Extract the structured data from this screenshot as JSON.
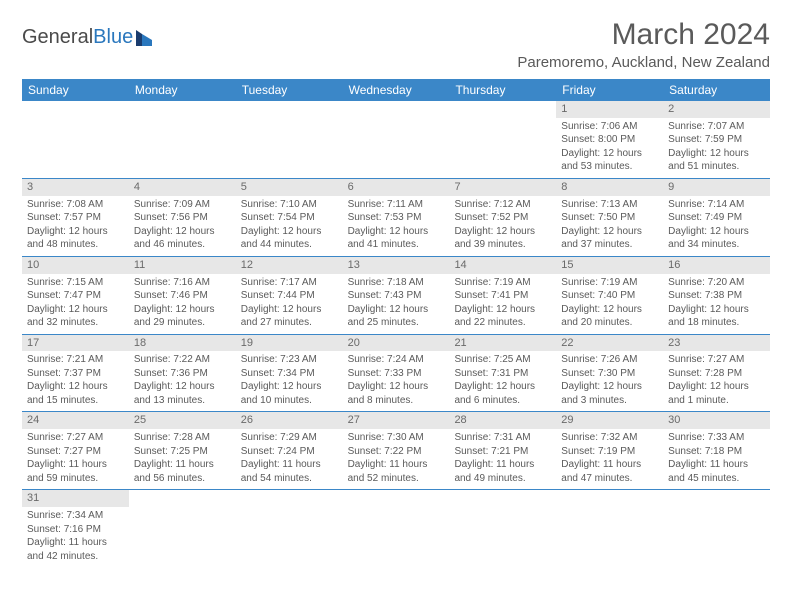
{
  "logo": {
    "text1": "General",
    "text2": "Blue"
  },
  "title": "March 2024",
  "location": "Paremoremo, Auckland, New Zealand",
  "colors": {
    "header_bg": "#3b87c8",
    "header_text": "#ffffff",
    "daynum_bg": "#e7e7e7",
    "text": "#5a5a5a",
    "rule": "#3b87c8"
  },
  "weekdays": [
    "Sunday",
    "Monday",
    "Tuesday",
    "Wednesday",
    "Thursday",
    "Friday",
    "Saturday"
  ],
  "weeks": [
    [
      {
        "n": "",
        "sr": "",
        "ss": "",
        "dl": ""
      },
      {
        "n": "",
        "sr": "",
        "ss": "",
        "dl": ""
      },
      {
        "n": "",
        "sr": "",
        "ss": "",
        "dl": ""
      },
      {
        "n": "",
        "sr": "",
        "ss": "",
        "dl": ""
      },
      {
        "n": "",
        "sr": "",
        "ss": "",
        "dl": ""
      },
      {
        "n": "1",
        "sr": "Sunrise: 7:06 AM",
        "ss": "Sunset: 8:00 PM",
        "dl": "Daylight: 12 hours and 53 minutes."
      },
      {
        "n": "2",
        "sr": "Sunrise: 7:07 AM",
        "ss": "Sunset: 7:59 PM",
        "dl": "Daylight: 12 hours and 51 minutes."
      }
    ],
    [
      {
        "n": "3",
        "sr": "Sunrise: 7:08 AM",
        "ss": "Sunset: 7:57 PM",
        "dl": "Daylight: 12 hours and 48 minutes."
      },
      {
        "n": "4",
        "sr": "Sunrise: 7:09 AM",
        "ss": "Sunset: 7:56 PM",
        "dl": "Daylight: 12 hours and 46 minutes."
      },
      {
        "n": "5",
        "sr": "Sunrise: 7:10 AM",
        "ss": "Sunset: 7:54 PM",
        "dl": "Daylight: 12 hours and 44 minutes."
      },
      {
        "n": "6",
        "sr": "Sunrise: 7:11 AM",
        "ss": "Sunset: 7:53 PM",
        "dl": "Daylight: 12 hours and 41 minutes."
      },
      {
        "n": "7",
        "sr": "Sunrise: 7:12 AM",
        "ss": "Sunset: 7:52 PM",
        "dl": "Daylight: 12 hours and 39 minutes."
      },
      {
        "n": "8",
        "sr": "Sunrise: 7:13 AM",
        "ss": "Sunset: 7:50 PM",
        "dl": "Daylight: 12 hours and 37 minutes."
      },
      {
        "n": "9",
        "sr": "Sunrise: 7:14 AM",
        "ss": "Sunset: 7:49 PM",
        "dl": "Daylight: 12 hours and 34 minutes."
      }
    ],
    [
      {
        "n": "10",
        "sr": "Sunrise: 7:15 AM",
        "ss": "Sunset: 7:47 PM",
        "dl": "Daylight: 12 hours and 32 minutes."
      },
      {
        "n": "11",
        "sr": "Sunrise: 7:16 AM",
        "ss": "Sunset: 7:46 PM",
        "dl": "Daylight: 12 hours and 29 minutes."
      },
      {
        "n": "12",
        "sr": "Sunrise: 7:17 AM",
        "ss": "Sunset: 7:44 PM",
        "dl": "Daylight: 12 hours and 27 minutes."
      },
      {
        "n": "13",
        "sr": "Sunrise: 7:18 AM",
        "ss": "Sunset: 7:43 PM",
        "dl": "Daylight: 12 hours and 25 minutes."
      },
      {
        "n": "14",
        "sr": "Sunrise: 7:19 AM",
        "ss": "Sunset: 7:41 PM",
        "dl": "Daylight: 12 hours and 22 minutes."
      },
      {
        "n": "15",
        "sr": "Sunrise: 7:19 AM",
        "ss": "Sunset: 7:40 PM",
        "dl": "Daylight: 12 hours and 20 minutes."
      },
      {
        "n": "16",
        "sr": "Sunrise: 7:20 AM",
        "ss": "Sunset: 7:38 PM",
        "dl": "Daylight: 12 hours and 18 minutes."
      }
    ],
    [
      {
        "n": "17",
        "sr": "Sunrise: 7:21 AM",
        "ss": "Sunset: 7:37 PM",
        "dl": "Daylight: 12 hours and 15 minutes."
      },
      {
        "n": "18",
        "sr": "Sunrise: 7:22 AM",
        "ss": "Sunset: 7:36 PM",
        "dl": "Daylight: 12 hours and 13 minutes."
      },
      {
        "n": "19",
        "sr": "Sunrise: 7:23 AM",
        "ss": "Sunset: 7:34 PM",
        "dl": "Daylight: 12 hours and 10 minutes."
      },
      {
        "n": "20",
        "sr": "Sunrise: 7:24 AM",
        "ss": "Sunset: 7:33 PM",
        "dl": "Daylight: 12 hours and 8 minutes."
      },
      {
        "n": "21",
        "sr": "Sunrise: 7:25 AM",
        "ss": "Sunset: 7:31 PM",
        "dl": "Daylight: 12 hours and 6 minutes."
      },
      {
        "n": "22",
        "sr": "Sunrise: 7:26 AM",
        "ss": "Sunset: 7:30 PM",
        "dl": "Daylight: 12 hours and 3 minutes."
      },
      {
        "n": "23",
        "sr": "Sunrise: 7:27 AM",
        "ss": "Sunset: 7:28 PM",
        "dl": "Daylight: 12 hours and 1 minute."
      }
    ],
    [
      {
        "n": "24",
        "sr": "Sunrise: 7:27 AM",
        "ss": "Sunset: 7:27 PM",
        "dl": "Daylight: 11 hours and 59 minutes."
      },
      {
        "n": "25",
        "sr": "Sunrise: 7:28 AM",
        "ss": "Sunset: 7:25 PM",
        "dl": "Daylight: 11 hours and 56 minutes."
      },
      {
        "n": "26",
        "sr": "Sunrise: 7:29 AM",
        "ss": "Sunset: 7:24 PM",
        "dl": "Daylight: 11 hours and 54 minutes."
      },
      {
        "n": "27",
        "sr": "Sunrise: 7:30 AM",
        "ss": "Sunset: 7:22 PM",
        "dl": "Daylight: 11 hours and 52 minutes."
      },
      {
        "n": "28",
        "sr": "Sunrise: 7:31 AM",
        "ss": "Sunset: 7:21 PM",
        "dl": "Daylight: 11 hours and 49 minutes."
      },
      {
        "n": "29",
        "sr": "Sunrise: 7:32 AM",
        "ss": "Sunset: 7:19 PM",
        "dl": "Daylight: 11 hours and 47 minutes."
      },
      {
        "n": "30",
        "sr": "Sunrise: 7:33 AM",
        "ss": "Sunset: 7:18 PM",
        "dl": "Daylight: 11 hours and 45 minutes."
      }
    ],
    [
      {
        "n": "31",
        "sr": "Sunrise: 7:34 AM",
        "ss": "Sunset: 7:16 PM",
        "dl": "Daylight: 11 hours and 42 minutes."
      },
      {
        "n": "",
        "sr": "",
        "ss": "",
        "dl": ""
      },
      {
        "n": "",
        "sr": "",
        "ss": "",
        "dl": ""
      },
      {
        "n": "",
        "sr": "",
        "ss": "",
        "dl": ""
      },
      {
        "n": "",
        "sr": "",
        "ss": "",
        "dl": ""
      },
      {
        "n": "",
        "sr": "",
        "ss": "",
        "dl": ""
      },
      {
        "n": "",
        "sr": "",
        "ss": "",
        "dl": ""
      }
    ]
  ]
}
